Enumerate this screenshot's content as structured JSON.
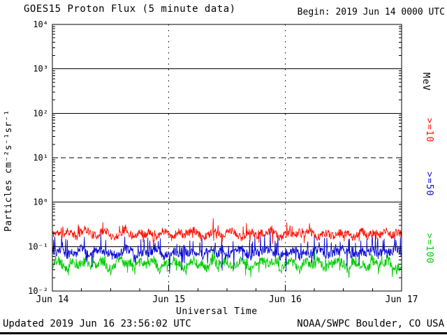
{
  "header": {
    "title": "GOES15 Proton Flux (5 minute data)",
    "begin": "Begin: 2019 Jun 14 0000 UTC"
  },
  "axes": {
    "x_label": "Universal Time",
    "y_label": "Particles cm⁻²s⁻¹sr⁻¹",
    "right_unit": "MeV"
  },
  "footer": {
    "updated": "Updated 2019 Jun 16 23:56:02 UTC",
    "credit": "NOAA/SWPC Boulder, CO USA"
  },
  "chart_data": {
    "type": "line",
    "title": "GOES15 Proton Flux (5 minute data)",
    "subtitle": "Begin: 2019 Jun 14 0000 UTC",
    "xlabel": "Universal Time",
    "ylabel": "Particles cm⁻²s⁻¹sr⁻¹",
    "y_scale": "log",
    "ylim": [
      0.01,
      10000
    ],
    "y_tick_labels": [
      "10⁴",
      "10³",
      "10²",
      "10¹",
      "10⁰",
      "10⁻¹",
      "10⁻²"
    ],
    "y_tick_exponents": [
      4,
      3,
      2,
      1,
      0,
      -1,
      -2
    ],
    "x_start": "2019 Jun 14 0000 UTC",
    "x_end": "2019 Jun 17 0000 UTC",
    "x_tick_labels": [
      "Jun 14",
      "Jun 15",
      "Jun 16",
      "Jun 17"
    ],
    "cadence": "5 minute",
    "right_axis_unit": "MeV",
    "grid": "decade lines, dashed alert line at 10^1, dotted vertical day lines",
    "hlines": [
      {
        "exp": 3,
        "style": "solid"
      },
      {
        "exp": 2,
        "style": "solid"
      },
      {
        "exp": 1,
        "style": "dashed"
      },
      {
        "exp": 0,
        "style": "solid"
      },
      {
        "exp": -1,
        "style": "solid"
      }
    ],
    "vlines_days": [
      1,
      2
    ],
    "series": [
      {
        "name": ">=10 MeV proton flux",
        "label": ">=10",
        "color": "#ff0e00",
        "seed": 11,
        "noise_log_sigma": 0.09,
        "spike_prob": 0.05,
        "spike_up_prob": 0.5,
        "spike_log": 0.22,
        "hourly_values": [
          0.19,
          0.21,
          0.17,
          0.23,
          0.2,
          0.16,
          0.22,
          0.25,
          0.19,
          0.17,
          0.21,
          0.23,
          0.18,
          0.16,
          0.2,
          0.24,
          0.19,
          0.17,
          0.22,
          0.18,
          0.21,
          0.16,
          0.19,
          0.23,
          0.2,
          0.17,
          0.22,
          0.18,
          0.2,
          0.24,
          0.19,
          0.16,
          0.18,
          0.22,
          0.2,
          0.17,
          0.21,
          0.23,
          0.18,
          0.16,
          0.19,
          0.22,
          0.17,
          0.2,
          0.18,
          0.23,
          0.19,
          0.16,
          0.18,
          0.21,
          0.17,
          0.22,
          0.19,
          0.23,
          0.18,
          0.16,
          0.2,
          0.19,
          0.17,
          0.22,
          0.18,
          0.21,
          0.16,
          0.19,
          0.22,
          0.17,
          0.2,
          0.18,
          0.19,
          0.23,
          0.17,
          0.21,
          0.19
        ]
      },
      {
        "name": ">=50 MeV proton flux",
        "label": ">=50",
        "color": "#0b0bd6",
        "seed": 23,
        "noise_log_sigma": 0.1,
        "spike_prob": 0.08,
        "spike_up_prob": 0.85,
        "spike_log": 0.38,
        "hourly_values": [
          0.08,
          0.07,
          0.09,
          0.06,
          0.08,
          0.07,
          0.1,
          0.07,
          0.06,
          0.08,
          0.09,
          0.07,
          0.08,
          0.06,
          0.07,
          0.09,
          0.08,
          0.07,
          0.06,
          0.08,
          0.07,
          0.09,
          0.08,
          0.06,
          0.07,
          0.08,
          0.06,
          0.09,
          0.07,
          0.08,
          0.07,
          0.06,
          0.08,
          0.09,
          0.07,
          0.08,
          0.06,
          0.07,
          0.08,
          0.09,
          0.07,
          0.06,
          0.08,
          0.07,
          0.09,
          0.08,
          0.07,
          0.06,
          0.08,
          0.07,
          0.09,
          0.06,
          0.08,
          0.07,
          0.08,
          0.09,
          0.07,
          0.06,
          0.08,
          0.07,
          0.09,
          0.08,
          0.06,
          0.07,
          0.08,
          0.07,
          0.09,
          0.06,
          0.08,
          0.07,
          0.08,
          0.09,
          0.07
        ]
      },
      {
        "name": ">=100 MeV proton flux",
        "label": ">=100",
        "color": "#00cc00",
        "seed": 37,
        "noise_log_sigma": 0.11,
        "spike_prob": 0.06,
        "spike_up_prob": 0.6,
        "spike_log": 0.22,
        "hourly_values": [
          0.04,
          0.05,
          0.04,
          0.03,
          0.05,
          0.04,
          0.04,
          0.05,
          0.03,
          0.04,
          0.05,
          0.04,
          0.03,
          0.04,
          0.05,
          0.04,
          0.04,
          0.03,
          0.05,
          0.04,
          0.04,
          0.05,
          0.03,
          0.04,
          0.04,
          0.05,
          0.04,
          0.03,
          0.04,
          0.05,
          0.04,
          0.04,
          0.03,
          0.05,
          0.04,
          0.04,
          0.05,
          0.03,
          0.04,
          0.05,
          0.04,
          0.03,
          0.04,
          0.05,
          0.04,
          0.04,
          0.05,
          0.03,
          0.04,
          0.05,
          0.04,
          0.03,
          0.05,
          0.04,
          0.04,
          0.05,
          0.03,
          0.04,
          0.04,
          0.05,
          0.04,
          0.03,
          0.05,
          0.04,
          0.04,
          0.03,
          0.05,
          0.04,
          0.04,
          0.05,
          0.04,
          0.03,
          0.04
        ]
      }
    ]
  }
}
